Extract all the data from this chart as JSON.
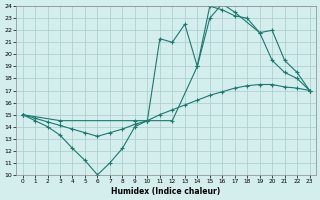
{
  "xlabel": "Humidex (Indice chaleur)",
  "ylabel": "",
  "xlim": [
    -0.5,
    23.5
  ],
  "ylim": [
    10,
    24
  ],
  "xticks": [
    0,
    1,
    2,
    3,
    4,
    5,
    6,
    7,
    8,
    9,
    10,
    11,
    12,
    13,
    14,
    15,
    16,
    17,
    18,
    19,
    20,
    21,
    22,
    23
  ],
  "yticks": [
    10,
    11,
    12,
    13,
    14,
    15,
    16,
    17,
    18,
    19,
    20,
    21,
    22,
    23,
    24
  ],
  "bg_color": "#d4eded",
  "grid_color": "#aacccc",
  "line_color": "#1a7a6e",
  "line1_x": [
    0,
    1,
    2,
    3,
    4,
    5,
    6,
    7,
    8,
    9,
    10,
    11,
    12,
    13,
    14,
    15,
    16,
    17,
    18,
    19,
    20,
    21,
    22,
    23
  ],
  "line1_y": [
    15,
    14.5,
    14.0,
    13.3,
    12.2,
    11.2,
    10.0,
    11.0,
    12.2,
    14.0,
    14.5,
    21.3,
    21.0,
    22.5,
    19.0,
    24.0,
    23.7,
    23.2,
    23.0,
    21.8,
    19.5,
    18.5,
    18.0,
    17.0
  ],
  "line2_x": [
    0,
    3,
    9,
    10,
    12,
    14,
    15,
    16,
    17,
    19,
    20,
    21,
    22,
    23
  ],
  "line2_y": [
    15,
    14.5,
    14.5,
    14.5,
    14.5,
    19.0,
    23.0,
    24.2,
    23.5,
    21.8,
    22.0,
    19.5,
    18.5,
    17.0
  ],
  "line3_x": [
    0,
    1,
    2,
    3,
    4,
    5,
    6,
    7,
    8,
    9,
    10,
    11,
    12,
    13,
    14,
    15,
    16,
    17,
    18,
    19,
    20,
    21,
    22,
    23
  ],
  "line3_y": [
    15.0,
    14.7,
    14.4,
    14.1,
    13.8,
    13.5,
    13.2,
    13.5,
    13.8,
    14.2,
    14.5,
    15.0,
    15.4,
    15.8,
    16.2,
    16.6,
    16.9,
    17.2,
    17.4,
    17.5,
    17.5,
    17.3,
    17.2,
    17.0
  ]
}
